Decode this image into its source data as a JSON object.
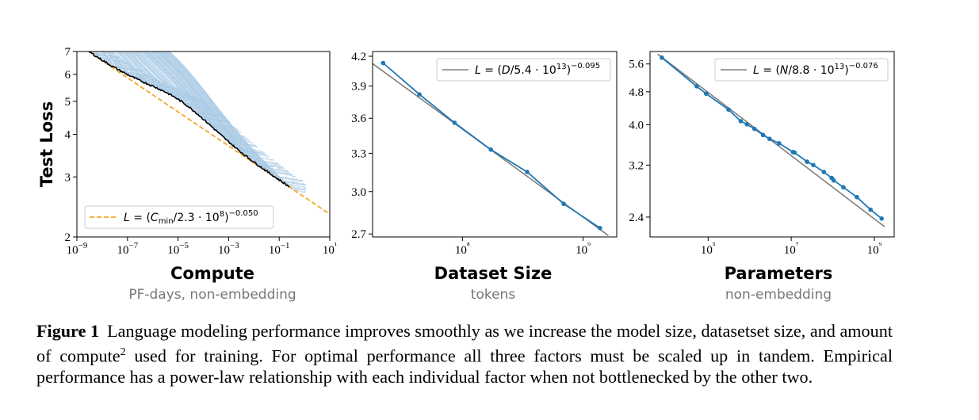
{
  "chart_data": [
    {
      "type": "line",
      "xlabel": "Compute",
      "xsublabel": "PF-days, non-embedding",
      "ylabel": "Test Loss",
      "xscale": "log",
      "yscale": "log",
      "xlim": [
        1e-09,
        10
      ],
      "ylim": [
        2,
        7
      ],
      "xticks": [
        "10−9",
        "10−7",
        "10−5",
        "10−3",
        "10−1",
        "10¹"
      ],
      "yticks": [
        "2",
        "3",
        "4",
        "5",
        "6",
        "7"
      ],
      "legend": {
        "position": "lower-left",
        "label": "L = (C_min/2.3·10⁸)^−0.050"
      },
      "fit": {
        "scale": 230000000.0,
        "exponent": -0.05,
        "color": "#f5a623"
      },
      "frontier": {
        "color": "#000000"
      },
      "curves_color": "#a9c9e4",
      "grid": false
    },
    {
      "type": "line",
      "xlabel": "Dataset Size",
      "xsublabel": "tokens",
      "ylabel": "",
      "xscale": "log",
      "yscale": "log",
      "xlim": [
        18000000.0,
        1900000000.0
      ],
      "ylim": [
        2.68,
        4.25
      ],
      "xticks": [
        "10⁸",
        "10⁹"
      ],
      "yticks": [
        "2.7",
        "3.0",
        "3.3",
        "3.6",
        "3.9",
        "4.2"
      ],
      "legend": {
        "position": "top-right",
        "label": "L = (D/5.4·10¹³)^−0.095"
      },
      "fit": {
        "scale": 54000000000000.0,
        "exponent": -0.095,
        "color": "#7f7f7f"
      },
      "series": [
        {
          "x": [
            22000000.0,
            44000000.0,
            86000000.0,
            172000000.0,
            344000000.0,
            690000000.0,
            1380000000.0
          ],
          "values": [
            4.13,
            3.82,
            3.56,
            3.33,
            3.15,
            2.91,
            2.74
          ],
          "color": "#1f77b4"
        }
      ],
      "grid": false
    },
    {
      "type": "line",
      "xlabel": "Parameters",
      "xsublabel": "non-embedding",
      "ylabel": "",
      "xscale": "log",
      "yscale": "log",
      "xlim": [
        4000.0,
        3000000000.0
      ],
      "ylim": [
        2.15,
        6.0
      ],
      "xticks": [
        "10⁵",
        "10⁷",
        "10⁹"
      ],
      "yticks": [
        "2.4",
        "3.2",
        "4.0",
        "4.8",
        "5.6"
      ],
      "legend": {
        "position": "top-right",
        "label": "L = (N/8.8·10¹³)^−0.076"
      },
      "fit": {
        "scale": 88000000000000.0,
        "exponent": -0.076,
        "color": "#7f7f7f"
      },
      "series": [
        {
          "x": [
            7700.0,
            53000.0,
            90000.0,
            310000.0,
            610000.0,
            860000.0,
            1300000.0,
            2100000.0,
            3000000.0,
            5100000.0,
            11000000.0,
            12000000.0,
            24000000.0,
            34000000.0,
            61000000.0,
            94000000.0,
            105000000.0,
            180000000.0,
            380000000.0,
            810000000.0,
            1500000000.0
          ],
          "values": [
            5.8,
            4.95,
            4.75,
            4.35,
            4.08,
            4.01,
            3.91,
            3.78,
            3.7,
            3.61,
            3.44,
            3.43,
            3.26,
            3.2,
            3.08,
            2.98,
            2.94,
            2.83,
            2.68,
            2.5,
            2.38
          ],
          "color": "#1f77b4"
        }
      ],
      "grid": false
    }
  ],
  "caption": {
    "label": "Figure 1",
    "text_part1": "Language modeling performance improves smoothly as we increase the model size, datasetset size, and amount of compute",
    "footnote_mark": "2",
    "text_part2": " used for training. For optimal performance all three factors must be scaled up in tandem. Empirical performance has a power-law relationship with each individual factor when not bottlenecked by the other two."
  }
}
